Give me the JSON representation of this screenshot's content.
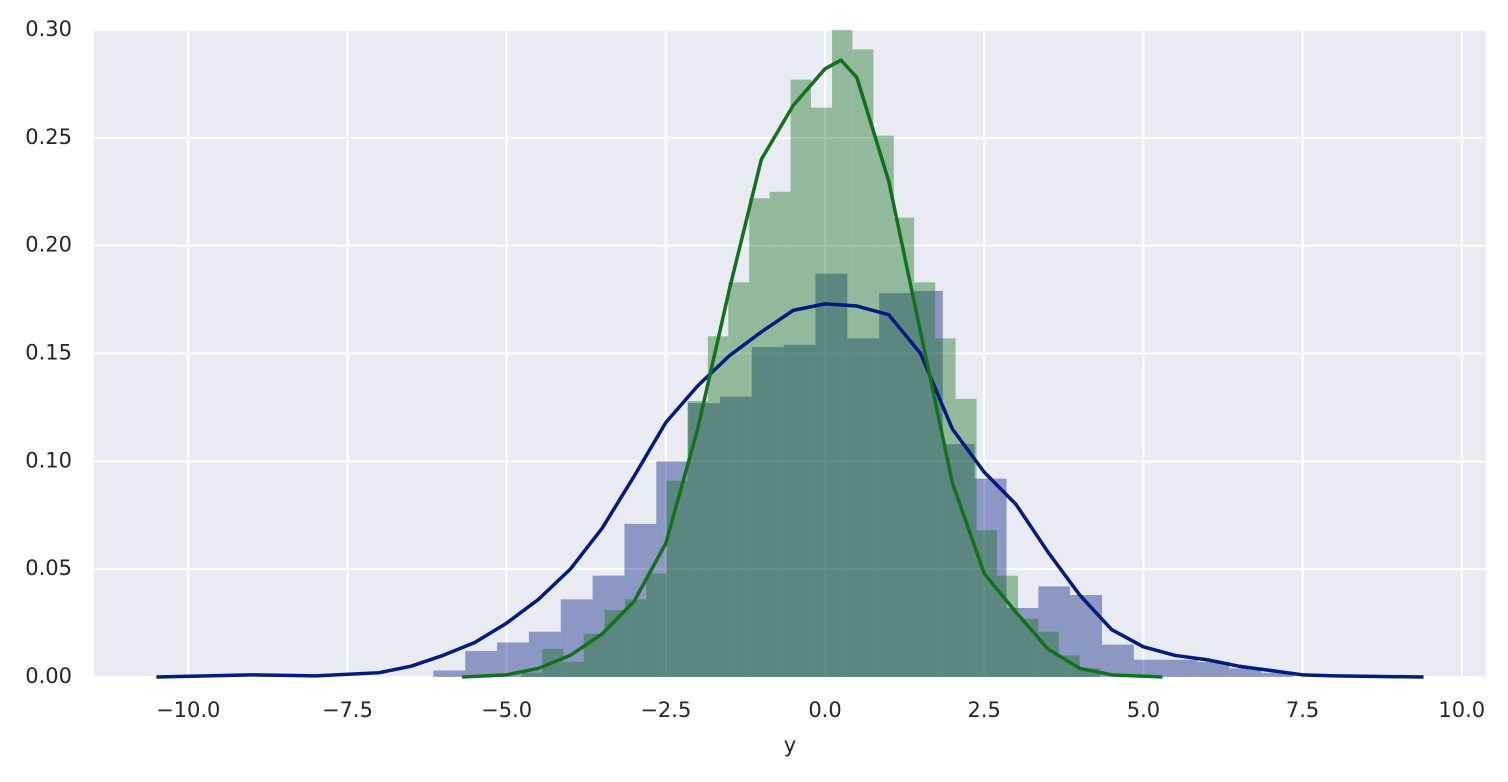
{
  "chart_data": {
    "type": "histogram",
    "xlabel": "y",
    "xlim": [
      -11.48,
      10.38
    ],
    "ylim": [
      0,
      0.3
    ],
    "xticks": [
      {
        "value": -10,
        "label": "−10.0"
      },
      {
        "value": -7.5,
        "label": "−7.5"
      },
      {
        "value": -5,
        "label": "−5.0"
      },
      {
        "value": -2.5,
        "label": "−2.5"
      },
      {
        "value": 0,
        "label": "0.0"
      },
      {
        "value": 2.5,
        "label": "2.5"
      },
      {
        "value": 5,
        "label": "5.0"
      },
      {
        "value": 7.5,
        "label": "7.5"
      },
      {
        "value": 10,
        "label": "10.0"
      }
    ],
    "yticks": [
      {
        "value": 0,
        "label": "0.00"
      },
      {
        "value": 0.05,
        "label": "0.05"
      },
      {
        "value": 0.1,
        "label": "0.10"
      },
      {
        "value": 0.15,
        "label": "0.15"
      },
      {
        "value": 0.2,
        "label": "0.20"
      },
      {
        "value": 0.25,
        "label": "0.25"
      },
      {
        "value": 0.3,
        "label": "0.30"
      }
    ],
    "grid": true,
    "series": [
      {
        "color": "#001c7f",
        "bins": [
          -6.15,
          -5.65,
          -5.15,
          -4.65,
          -4.15,
          -3.65,
          -3.15,
          -2.65,
          -2.15,
          -1.65,
          -1.15,
          -0.65,
          -0.15,
          0.35,
          0.85,
          1.35,
          1.85,
          2.35,
          2.85,
          3.35,
          3.85,
          4.35,
          4.85,
          5.35,
          5.85,
          6.35,
          6.85,
          7.35
        ],
        "values": [
          0.003,
          0.012,
          0.016,
          0.021,
          0.036,
          0.047,
          0.071,
          0.1,
          0.127,
          0.13,
          0.153,
          0.154,
          0.187,
          0.157,
          0.178,
          0.179,
          0.108,
          0.092,
          0.032,
          0.042,
          0.038,
          0.015,
          0.008,
          0.008,
          0.007,
          0.004,
          0.002
        ]
      },
      {
        "color": "#12711c",
        "bins": [
          -4.76,
          -4.44,
          -4.11,
          -3.79,
          -3.46,
          -3.14,
          -2.81,
          -2.49,
          -2.16,
          -1.84,
          -1.52,
          -1.19,
          -0.87,
          -0.54,
          -0.22,
          0.11,
          0.43,
          0.76,
          1.08,
          1.4,
          1.73,
          2.05,
          2.38,
          2.7,
          3.03,
          3.35,
          3.67,
          4.0,
          4.32
        ],
        "values": [
          0.002,
          0.013,
          0.007,
          0.02,
          0.031,
          0.036,
          0.048,
          0.091,
          0.128,
          0.158,
          0.183,
          0.222,
          0.225,
          0.277,
          0.264,
          0.3,
          0.291,
          0.251,
          0.213,
          0.183,
          0.157,
          0.129,
          0.068,
          0.047,
          0.027,
          0.021,
          0.01,
          0.004
        ]
      }
    ],
    "lines": [
      {
        "color": "#001c7f",
        "x": [
          -10.5,
          -9,
          -8,
          -7,
          -6.5,
          -6,
          -5.5,
          -5,
          -4.5,
          -4,
          -3.5,
          -3,
          -2.5,
          -2,
          -1.5,
          -1,
          -0.5,
          0,
          0.5,
          1,
          1.5,
          2,
          2.5,
          3,
          3.5,
          4,
          4.5,
          5,
          5.5,
          6,
          6.5,
          7,
          7.5,
          8,
          9.4
        ],
        "values": [
          0,
          0.001,
          0.0005,
          0.002,
          0.005,
          0.01,
          0.016,
          0.025,
          0.036,
          0.05,
          0.069,
          0.093,
          0.118,
          0.135,
          0.149,
          0.16,
          0.17,
          0.173,
          0.172,
          0.168,
          0.15,
          0.115,
          0.095,
          0.08,
          0.058,
          0.038,
          0.022,
          0.014,
          0.01,
          0.008,
          0.005,
          0.003,
          0.001,
          0.0005,
          0
        ]
      },
      {
        "color": "#12711c",
        "x": [
          -5.7,
          -5,
          -4.5,
          -4,
          -3.5,
          -3,
          -2.5,
          -2,
          -1.5,
          -1,
          -0.5,
          0,
          0.25,
          0.5,
          1,
          1.5,
          2,
          2.5,
          3,
          3.5,
          4,
          4.5,
          5.3
        ],
        "values": [
          0,
          0.001,
          0.004,
          0.01,
          0.02,
          0.035,
          0.062,
          0.115,
          0.18,
          0.24,
          0.265,
          0.282,
          0.286,
          0.278,
          0.23,
          0.16,
          0.09,
          0.048,
          0.03,
          0.013,
          0.004,
          0.001,
          0
        ]
      }
    ]
  }
}
